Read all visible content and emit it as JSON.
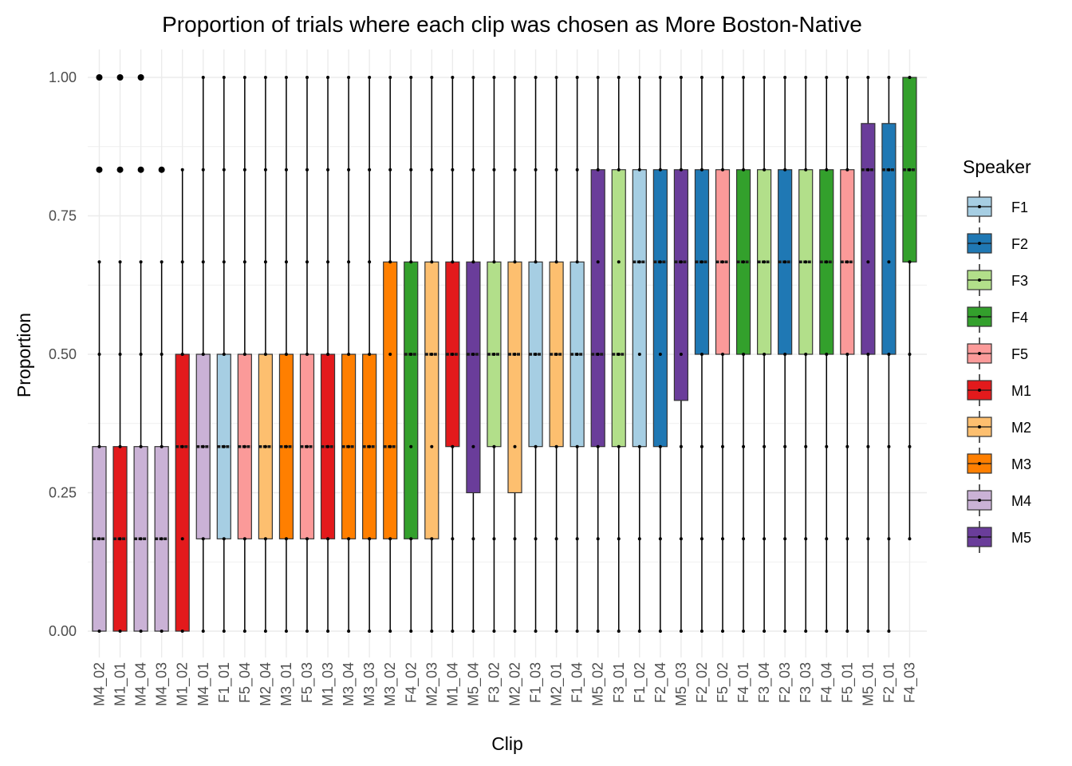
{
  "chart_data": {
    "type": "boxplot",
    "title": "Proportion of trials where each clip was chosen as More Boston-Native",
    "xlabel": "Clip",
    "ylabel": "Proportion",
    "ylim": [
      0,
      1
    ],
    "yticks": [
      "0.00",
      "0.25",
      "0.50",
      "0.75",
      "1.00"
    ],
    "grid": true,
    "legend": {
      "title": "Speaker",
      "position": "right",
      "items": [
        {
          "name": "F1",
          "color": "#A6CEE3"
        },
        {
          "name": "F2",
          "color": "#1F78B4"
        },
        {
          "name": "F3",
          "color": "#B2DF8A"
        },
        {
          "name": "F4",
          "color": "#33A02C"
        },
        {
          "name": "F5",
          "color": "#FB9A99"
        },
        {
          "name": "M1",
          "color": "#E31A1C"
        },
        {
          "name": "M2",
          "color": "#FDBF6F"
        },
        {
          "name": "M3",
          "color": "#FF7F00"
        },
        {
          "name": "M4",
          "color": "#CAB2D6"
        },
        {
          "name": "M5",
          "color": "#6A3D9A"
        }
      ]
    },
    "boxes": [
      {
        "clip": "M4_02",
        "speaker": "M4",
        "min": 0,
        "q1": 0,
        "median": 0.1667,
        "q3": 0.3333,
        "max": 0.6667,
        "outliers": [
          0.8333,
          1.0
        ]
      },
      {
        "clip": "M1_01",
        "speaker": "M1",
        "min": 0,
        "q1": 0,
        "median": 0.1667,
        "q3": 0.3333,
        "max": 0.6667,
        "outliers": [
          0.8333,
          1.0
        ]
      },
      {
        "clip": "M4_04",
        "speaker": "M4",
        "min": 0,
        "q1": 0,
        "median": 0.1667,
        "q3": 0.3333,
        "max": 0.6667,
        "outliers": [
          0.8333,
          1.0
        ]
      },
      {
        "clip": "M4_03",
        "speaker": "M4",
        "min": 0,
        "q1": 0,
        "median": 0.1667,
        "q3": 0.3333,
        "max": 0.6667,
        "outliers": [
          0.8333
        ]
      },
      {
        "clip": "M1_02",
        "speaker": "M1",
        "min": 0,
        "q1": 0,
        "median": 0.3333,
        "q3": 0.5,
        "max": 0.8333,
        "outliers": []
      },
      {
        "clip": "M4_01",
        "speaker": "M4",
        "min": 0,
        "q1": 0.1667,
        "median": 0.3333,
        "q3": 0.5,
        "max": 1.0,
        "outliers": []
      },
      {
        "clip": "F1_01",
        "speaker": "F1",
        "min": 0,
        "q1": 0.1667,
        "median": 0.3333,
        "q3": 0.5,
        "max": 1.0,
        "outliers": []
      },
      {
        "clip": "F5_04",
        "speaker": "F5",
        "min": 0,
        "q1": 0.1667,
        "median": 0.3333,
        "q3": 0.5,
        "max": 1.0,
        "outliers": []
      },
      {
        "clip": "M2_04",
        "speaker": "M2",
        "min": 0,
        "q1": 0.1667,
        "median": 0.3333,
        "q3": 0.5,
        "max": 1.0,
        "outliers": []
      },
      {
        "clip": "M3_01",
        "speaker": "M3",
        "min": 0,
        "q1": 0.1667,
        "median": 0.3333,
        "q3": 0.5,
        "max": 1.0,
        "outliers": []
      },
      {
        "clip": "F5_03",
        "speaker": "F5",
        "min": 0,
        "q1": 0.1667,
        "median": 0.3333,
        "q3": 0.5,
        "max": 1.0,
        "outliers": []
      },
      {
        "clip": "M1_03",
        "speaker": "M1",
        "min": 0,
        "q1": 0.1667,
        "median": 0.3333,
        "q3": 0.5,
        "max": 1.0,
        "outliers": []
      },
      {
        "clip": "M3_04",
        "speaker": "M3",
        "min": 0,
        "q1": 0.1667,
        "median": 0.3333,
        "q3": 0.5,
        "max": 1.0,
        "outliers": []
      },
      {
        "clip": "M3_03",
        "speaker": "M3",
        "min": 0,
        "q1": 0.1667,
        "median": 0.3333,
        "q3": 0.5,
        "max": 1.0,
        "outliers": []
      },
      {
        "clip": "M3_02",
        "speaker": "M3",
        "min": 0,
        "q1": 0.1667,
        "median": 0.3333,
        "q3": 0.6667,
        "max": 1.0,
        "outliers": []
      },
      {
        "clip": "F4_02",
        "speaker": "F4",
        "min": 0,
        "q1": 0.1667,
        "median": 0.5,
        "q3": 0.6667,
        "max": 1.0,
        "outliers": []
      },
      {
        "clip": "M2_03",
        "speaker": "M2",
        "min": 0,
        "q1": 0.1667,
        "median": 0.5,
        "q3": 0.6667,
        "max": 1.0,
        "outliers": []
      },
      {
        "clip": "M1_04",
        "speaker": "M1",
        "min": 0,
        "q1": 0.3333,
        "median": 0.5,
        "q3": 0.6667,
        "max": 1.0,
        "outliers": []
      },
      {
        "clip": "M5_04",
        "speaker": "M5",
        "min": 0,
        "q1": 0.25,
        "median": 0.5,
        "q3": 0.6667,
        "max": 1.0,
        "outliers": []
      },
      {
        "clip": "F3_02",
        "speaker": "F3",
        "min": 0,
        "q1": 0.3333,
        "median": 0.5,
        "q3": 0.6667,
        "max": 1.0,
        "outliers": []
      },
      {
        "clip": "M2_02",
        "speaker": "M2",
        "min": 0,
        "q1": 0.25,
        "median": 0.5,
        "q3": 0.6667,
        "max": 1.0,
        "outliers": []
      },
      {
        "clip": "F1_03",
        "speaker": "F1",
        "min": 0,
        "q1": 0.3333,
        "median": 0.5,
        "q3": 0.6667,
        "max": 1.0,
        "outliers": []
      },
      {
        "clip": "M2_01",
        "speaker": "M2",
        "min": 0,
        "q1": 0.3333,
        "median": 0.5,
        "q3": 0.6667,
        "max": 1.0,
        "outliers": []
      },
      {
        "clip": "F1_04",
        "speaker": "F1",
        "min": 0,
        "q1": 0.3333,
        "median": 0.5,
        "q3": 0.6667,
        "max": 1.0,
        "outliers": []
      },
      {
        "clip": "M5_02",
        "speaker": "M5",
        "min": 0,
        "q1": 0.3333,
        "median": 0.5,
        "q3": 0.8333,
        "max": 1.0,
        "outliers": []
      },
      {
        "clip": "F3_01",
        "speaker": "F3",
        "min": 0,
        "q1": 0.3333,
        "median": 0.5,
        "q3": 0.8333,
        "max": 1.0,
        "outliers": []
      },
      {
        "clip": "F1_02",
        "speaker": "F1",
        "min": 0,
        "q1": 0.3333,
        "median": 0.6667,
        "q3": 0.8333,
        "max": 1.0,
        "outliers": []
      },
      {
        "clip": "F2_04",
        "speaker": "F2",
        "min": 0,
        "q1": 0.3333,
        "median": 0.6667,
        "q3": 0.8333,
        "max": 1.0,
        "outliers": []
      },
      {
        "clip": "M5_03",
        "speaker": "M5",
        "min": 0,
        "q1": 0.4167,
        "median": 0.6667,
        "q3": 0.8333,
        "max": 1.0,
        "outliers": []
      },
      {
        "clip": "F2_02",
        "speaker": "F2",
        "min": 0,
        "q1": 0.5,
        "median": 0.6667,
        "q3": 0.8333,
        "max": 1.0,
        "outliers": []
      },
      {
        "clip": "F5_02",
        "speaker": "F5",
        "min": 0,
        "q1": 0.5,
        "median": 0.6667,
        "q3": 0.8333,
        "max": 1.0,
        "outliers": []
      },
      {
        "clip": "F4_01",
        "speaker": "F4",
        "min": 0,
        "q1": 0.5,
        "median": 0.6667,
        "q3": 0.8333,
        "max": 1.0,
        "outliers": []
      },
      {
        "clip": "F3_04",
        "speaker": "F3",
        "min": 0,
        "q1": 0.5,
        "median": 0.6667,
        "q3": 0.8333,
        "max": 1.0,
        "outliers": []
      },
      {
        "clip": "F2_03",
        "speaker": "F2",
        "min": 0,
        "q1": 0.5,
        "median": 0.6667,
        "q3": 0.8333,
        "max": 1.0,
        "outliers": []
      },
      {
        "clip": "F3_03",
        "speaker": "F3",
        "min": 0,
        "q1": 0.5,
        "median": 0.6667,
        "q3": 0.8333,
        "max": 1.0,
        "outliers": []
      },
      {
        "clip": "F4_04",
        "speaker": "F4",
        "min": 0,
        "q1": 0.5,
        "median": 0.6667,
        "q3": 0.8333,
        "max": 1.0,
        "outliers": []
      },
      {
        "clip": "F5_01",
        "speaker": "F5",
        "min": 0,
        "q1": 0.5,
        "median": 0.6667,
        "q3": 0.8333,
        "max": 1.0,
        "outliers": []
      },
      {
        "clip": "M5_01",
        "speaker": "M5",
        "min": 0,
        "q1": 0.5,
        "median": 0.8333,
        "q3": 0.9167,
        "max": 1.0,
        "outliers": []
      },
      {
        "clip": "F2_01",
        "speaker": "F2",
        "min": 0,
        "q1": 0.5,
        "median": 0.8333,
        "q3": 0.9167,
        "max": 1.0,
        "outliers": []
      },
      {
        "clip": "F4_03",
        "speaker": "F4",
        "min": 0.1667,
        "q1": 0.6667,
        "median": 0.8333,
        "q3": 1.0,
        "max": 1.0,
        "outliers": []
      }
    ],
    "jitter_levels": [
      0,
      0.1667,
      0.3333,
      0.5,
      0.6667,
      0.8333,
      1.0
    ]
  }
}
